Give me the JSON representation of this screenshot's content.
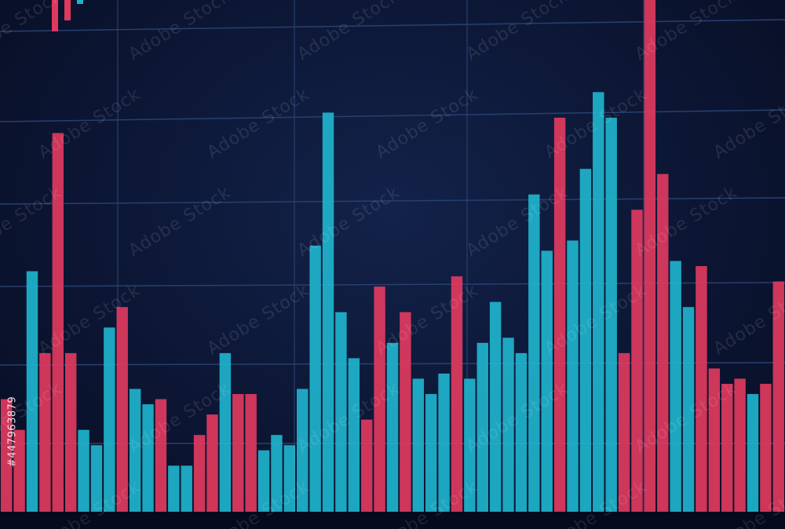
{
  "chart_data": {
    "type": "bar",
    "title": "",
    "xlabel": "",
    "ylabel": "",
    "ylim": [
      0,
      100
    ],
    "grid": true,
    "bars": [
      {
        "value": 22,
        "dir": "down"
      },
      {
        "value": 16,
        "dir": "down"
      },
      {
        "value": 47,
        "dir": "up"
      },
      {
        "value": 31,
        "dir": "down"
      },
      {
        "value": 74,
        "dir": "down"
      },
      {
        "value": 31,
        "dir": "down"
      },
      {
        "value": 16,
        "dir": "up"
      },
      {
        "value": 13,
        "dir": "up"
      },
      {
        "value": 36,
        "dir": "up"
      },
      {
        "value": 40,
        "dir": "down"
      },
      {
        "value": 24,
        "dir": "up"
      },
      {
        "value": 21,
        "dir": "up"
      },
      {
        "value": 22,
        "dir": "down"
      },
      {
        "value": 9,
        "dir": "up"
      },
      {
        "value": 9,
        "dir": "up"
      },
      {
        "value": 15,
        "dir": "down"
      },
      {
        "value": 19,
        "dir": "down"
      },
      {
        "value": 31,
        "dir": "up"
      },
      {
        "value": 23,
        "dir": "down"
      },
      {
        "value": 23,
        "dir": "down"
      },
      {
        "value": 12,
        "dir": "up"
      },
      {
        "value": 15,
        "dir": "up"
      },
      {
        "value": 13,
        "dir": "up"
      },
      {
        "value": 24,
        "dir": "up"
      },
      {
        "value": 52,
        "dir": "up"
      },
      {
        "value": 78,
        "dir": "up"
      },
      {
        "value": 39,
        "dir": "up"
      },
      {
        "value": 30,
        "dir": "up"
      },
      {
        "value": 18,
        "dir": "down"
      },
      {
        "value": 44,
        "dir": "down"
      },
      {
        "value": 33,
        "dir": "up"
      },
      {
        "value": 39,
        "dir": "down"
      },
      {
        "value": 26,
        "dir": "up"
      },
      {
        "value": 23,
        "dir": "up"
      },
      {
        "value": 27,
        "dir": "up"
      },
      {
        "value": 46,
        "dir": "down"
      },
      {
        "value": 26,
        "dir": "up"
      },
      {
        "value": 33,
        "dir": "up"
      },
      {
        "value": 41,
        "dir": "up"
      },
      {
        "value": 34,
        "dir": "up"
      },
      {
        "value": 31,
        "dir": "up"
      },
      {
        "value": 62,
        "dir": "up"
      },
      {
        "value": 51,
        "dir": "up"
      },
      {
        "value": 77,
        "dir": "down"
      },
      {
        "value": 53,
        "dir": "up"
      },
      {
        "value": 67,
        "dir": "up"
      },
      {
        "value": 82,
        "dir": "up"
      },
      {
        "value": 77,
        "dir": "up"
      },
      {
        "value": 31,
        "dir": "down"
      },
      {
        "value": 59,
        "dir": "down"
      },
      {
        "value": 100,
        "dir": "down"
      },
      {
        "value": 66,
        "dir": "down"
      },
      {
        "value": 49,
        "dir": "up"
      },
      {
        "value": 40,
        "dir": "up"
      },
      {
        "value": 48,
        "dir": "down"
      },
      {
        "value": 28,
        "dir": "down"
      },
      {
        "value": 25,
        "dir": "down"
      },
      {
        "value": 26,
        "dir": "down"
      },
      {
        "value": 23,
        "dir": "up"
      },
      {
        "value": 25,
        "dir": "down"
      },
      {
        "value": 45,
        "dir": "down"
      }
    ]
  },
  "colors": {
    "up": "#1fb3cc",
    "down": "#e0395e",
    "grid": "#27406e",
    "background": "#0c1634"
  },
  "watermark": {
    "text": "Adobe Stock",
    "stock_id": "#447963879"
  }
}
